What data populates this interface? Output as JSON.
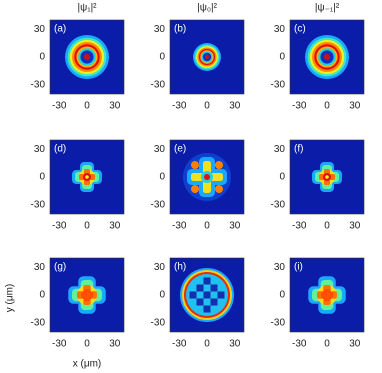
{
  "columns": [
    "|ψ₁|²",
    "|ψ₀|²",
    "|ψ₋₁|²"
  ],
  "panels": [
    "(a)",
    "(b)",
    "(c)",
    "(d)",
    "(e)",
    "(f)",
    "(g)",
    "(h)",
    "(i)"
  ],
  "x_ticks": [
    "-30",
    "0",
    "30"
  ],
  "y_ticks": [
    "30",
    "0",
    "-30"
  ],
  "x_label": "x (μm)",
  "y_label": "y (μm)"
}
